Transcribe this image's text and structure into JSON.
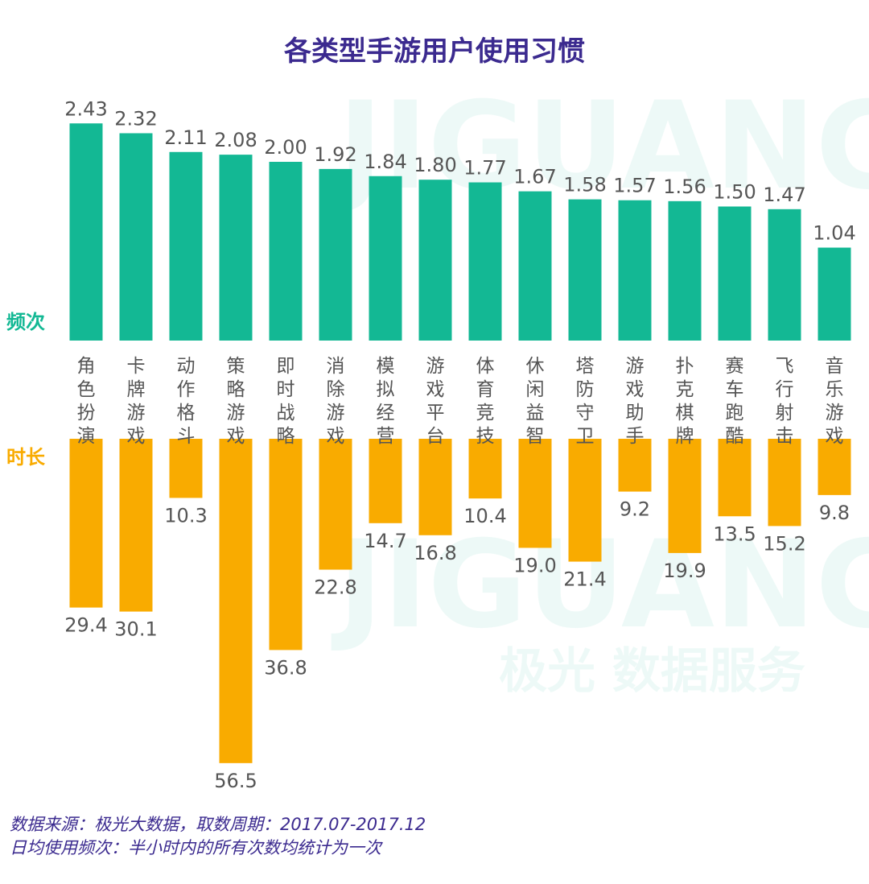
{
  "chart_data": {
    "type": "bar",
    "title": "各类型手游用户使用习惯",
    "categories": [
      "角色扮演",
      "卡牌游戏",
      "动作格斗",
      "策略游戏",
      "即时战略",
      "消除游戏",
      "模拟经营",
      "游戏平台",
      "体育竞技",
      "休闲益智",
      "塔防守卫",
      "游戏助手",
      "扑克棋牌",
      "赛车跑酷",
      "飞行射击",
      "音乐游戏"
    ],
    "series": [
      {
        "name": "频次",
        "values": [
          2.43,
          2.32,
          2.11,
          2.08,
          2.0,
          1.92,
          1.84,
          1.8,
          1.77,
          1.67,
          1.58,
          1.57,
          1.56,
          1.5,
          1.47,
          1.04
        ],
        "color": "#13b894",
        "direction": "up"
      },
      {
        "name": "时长",
        "values": [
          29.4,
          30.1,
          10.3,
          56.5,
          36.8,
          22.8,
          14.7,
          16.8,
          10.4,
          19.0,
          21.4,
          9.2,
          19.9,
          13.5,
          15.2,
          9.8
        ],
        "color": "#f9ab00",
        "direction": "down"
      }
    ],
    "grid": false,
    "legend": "left"
  },
  "footer": {
    "source": "数据来源：极光大数据，取数周期：2017.07-2017.12",
    "note": "日均使用频次：半小时内的所有次数均统计为一次"
  },
  "watermark": {
    "brand": "JIGUANG",
    "tagline": "极光 数据服务"
  }
}
